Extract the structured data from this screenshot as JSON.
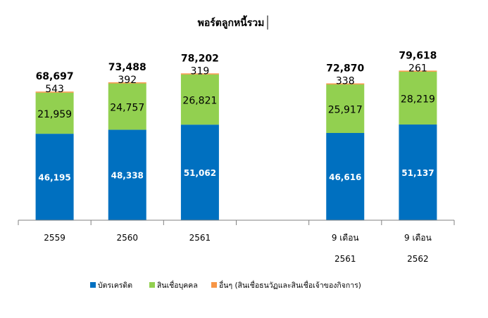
{
  "chart_data": {
    "type": "bar",
    "stacked": true,
    "title": "พอร์ตลูกหนี้รวม",
    "categories": [
      {
        "line1": "2559",
        "line2": ""
      },
      {
        "line1": "2560",
        "line2": ""
      },
      {
        "line1": "2561",
        "line2": ""
      },
      {
        "line1": "",
        "line2": ""
      },
      {
        "line1": "9 เดือน",
        "line2": "2561"
      },
      {
        "line1": "9 เดือน",
        "line2": "2562"
      }
    ],
    "series": [
      {
        "name": "บัตรเครดิต",
        "color": "#0070C0",
        "values": [
          46195,
          48338,
          51062,
          null,
          46616,
          51137
        ],
        "labels": [
          "46,195",
          "48,338",
          "51,062",
          "",
          "46,616",
          "51,137"
        ]
      },
      {
        "name": "สินเชื่อบุคคล",
        "color": "#92D050",
        "values": [
          21959,
          24757,
          26821,
          null,
          25917,
          28219
        ],
        "labels": [
          "21,959",
          "24,757",
          "26,821",
          "",
          "25,917",
          "28,219"
        ]
      },
      {
        "name": "อื่นๆ (สินเชื่อธนวัฏและสินเชื่อเจ้าของกิจการ)",
        "color": "#F79646",
        "values": [
          543,
          392,
          319,
          null,
          338,
          261
        ],
        "labels": [
          "543",
          "392",
          "319",
          "",
          "338",
          "261"
        ]
      }
    ],
    "totals": [
      "68,697",
      "73,488",
      "78,202",
      "",
      "72,870",
      "79,618"
    ],
    "total_values": [
      68697,
      73488,
      78202,
      null,
      72870,
      79618
    ],
    "ylim": [
      0,
      100000
    ],
    "grid": false,
    "legend_position": "bottom"
  }
}
